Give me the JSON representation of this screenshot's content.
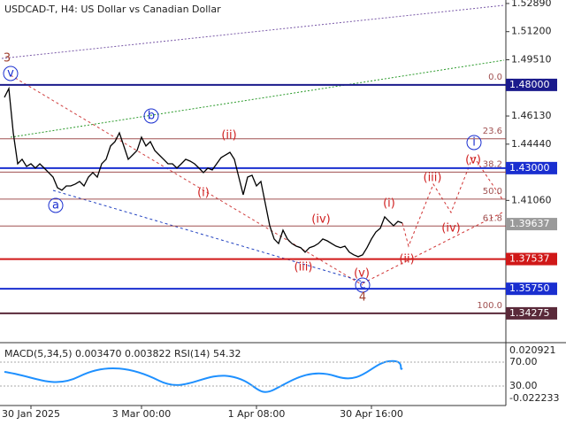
{
  "chart_data": {
    "type": "line",
    "title": "USDCAD-T, H4:  US Dollar vs Canadian Dollar",
    "color": "#000000",
    "values": [
      1.4725,
      1.4778,
      1.4512,
      1.4326,
      1.4353,
      1.431,
      1.4326,
      1.43,
      1.4326,
      1.43,
      1.4273,
      1.4246,
      1.4182,
      1.4167,
      1.4193,
      1.4193,
      1.4204,
      1.422,
      1.4193,
      1.4246,
      1.4273,
      1.4246,
      1.4326,
      1.4353,
      1.4433,
      1.4459,
      1.4512,
      1.4433,
      1.4353,
      1.4379,
      1.4406,
      1.4486,
      1.4433,
      1.4459,
      1.4406,
      1.4379,
      1.4353,
      1.4326,
      1.4326,
      1.43,
      1.4326,
      1.4353,
      1.4342,
      1.4326,
      1.43,
      1.4273,
      1.43,
      1.4289,
      1.4326,
      1.4363,
      1.4379,
      1.4395,
      1.4353,
      1.4246,
      1.414,
      1.4246,
      1.4257,
      1.4193,
      1.422,
      1.4087,
      1.3954,
      1.3874,
      1.3847,
      1.3927,
      1.3874,
      1.3847,
      1.3831,
      1.3822,
      1.3795,
      1.3822,
      1.3831,
      1.3847,
      1.3874,
      1.3863,
      1.3847,
      1.3831,
      1.3822,
      1.3831,
      1.3795,
      1.3779,
      1.3768,
      1.3779,
      1.3822,
      1.3874,
      1.3916,
      1.3938,
      1.4007,
      1.398,
      1.3954,
      1.398,
      1.397
    ],
    "ylim": [
      1.3262,
      1.531
    ],
    "yticks": [
      {
        "value": 1.5289,
        "label": "1.52890"
      },
      {
        "value": 1.512,
        "label": "1.51200"
      },
      {
        "value": 1.4951,
        "label": "1.49510"
      },
      {
        "value": 1.4613,
        "label": "1.46130"
      },
      {
        "value": 1.4444,
        "label": "1.44440"
      },
      {
        "value": 1.4106,
        "label": "1.41060"
      }
    ],
    "xticks": [
      {
        "value": 6,
        "label": "30 Jan 2025"
      },
      {
        "value": 31,
        "label": "3 Mar 00:00"
      },
      {
        "value": 57,
        "label": "1 Apr 08:00"
      },
      {
        "value": 83,
        "label": "30 Apr 16:00"
      }
    ],
    "levels": [
      {
        "value": 1.48,
        "label": "1.48000",
        "color": "#1a1a8c"
      },
      {
        "value": 1.43,
        "label": "1.43000",
        "color": "#1a2fd0"
      },
      {
        "value": 1.39637,
        "label": "1.39637",
        "color": "#9a9a9a"
      },
      {
        "value": 1.37537,
        "label": "1.37537",
        "color": "#d01818"
      },
      {
        "value": 1.3575,
        "label": "1.35750",
        "color": "#1a2fd0"
      },
      {
        "value": 1.34275,
        "label": "1.34275",
        "color": "#5a2a3a"
      }
    ],
    "fib_levels": [
      {
        "value": 1.48,
        "label": "0.0"
      },
      {
        "value": 1.4476,
        "label": "23.6"
      },
      {
        "value": 1.4276,
        "label": "38.2"
      },
      {
        "value": 1.4114,
        "label": "50.0"
      },
      {
        "value": 1.3952,
        "label": "61.8"
      },
      {
        "value": 1.34275,
        "label": "100.0"
      }
    ],
    "wave_labels": [
      "3",
      "v",
      "a",
      "b",
      "c",
      "i",
      "4",
      "(ii)",
      "(i)",
      "(iv)",
      "(iii)",
      "(v)",
      "(i)",
      "(ii)",
      "(iii)",
      "(iv)",
      "(v)"
    ],
    "indicator": {
      "title": "MACD(5,34,5) 0.003470 0.003822 RSI(14) 54.32",
      "ticks": [
        0.020921,
        {
          "value": 70,
          "label": "70.00"
        },
        {
          "value": 30,
          "label": "30.00"
        },
        -0.022233
      ]
    }
  }
}
